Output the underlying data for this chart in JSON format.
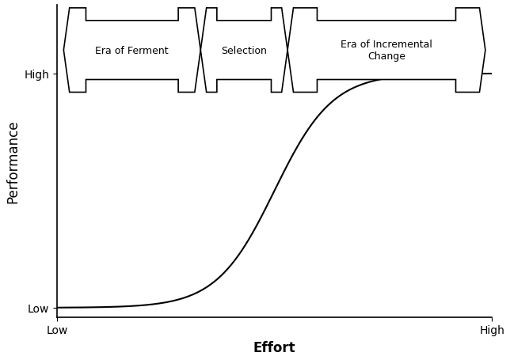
{
  "title": "",
  "xlabel": "Effort",
  "ylabel": "Performance",
  "xlabel_fontsize": 12,
  "ylabel_fontsize": 12,
  "tick_label_fontsize": 10,
  "x_tick_labels": [
    "Low",
    "High"
  ],
  "y_tick_labels": [
    "Low",
    "High"
  ],
  "background_color": "#ffffff",
  "line_color": "#000000",
  "line_width": 1.5,
  "arrow_labels": [
    "Era of Ferment",
    "Selection",
    "Era of Incremental\nChange"
  ],
  "arrow_facecolor": "#ffffff",
  "arrow_edgecolor": "#000000",
  "arrow_lw": 1.2
}
